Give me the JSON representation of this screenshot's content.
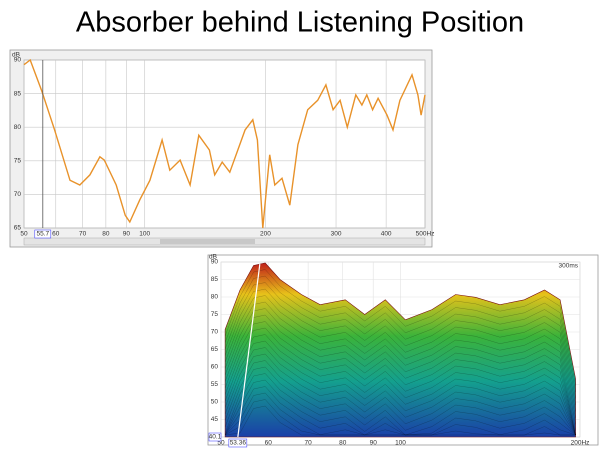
{
  "title": "Absorber behind Listening Position",
  "chart_data": [
    {
      "type": "line",
      "y_label": "dB",
      "cursor_label": "55.7",
      "cursor_x": 55.7,
      "log_x": true,
      "grid": true,
      "color": "#e8922a",
      "xlim": [
        50,
        500
      ],
      "xticks": [
        50,
        60,
        70,
        80,
        90,
        100,
        200,
        300,
        400,
        {
          "value": 500,
          "label": "500Hz"
        }
      ],
      "ylim": [
        65,
        90
      ],
      "yticks": [
        65,
        70,
        75,
        80,
        85,
        90
      ],
      "x": [
        50,
        51.8,
        55.3,
        59.6,
        65.1,
        68.9,
        73.0,
        77.3,
        79.3,
        84.9,
        89.4,
        91.8,
        97.2,
        103,
        110.5,
        115.5,
        122.5,
        129.8,
        136.4,
        145,
        149.5,
        156,
        163,
        178,
        186,
        191,
        197,
        205,
        211,
        220,
        230,
        241,
        255,
        270,
        283,
        295,
        307,
        320,
        336,
        348,
        358,
        370,
        382,
        402,
        416,
        433,
        464,
        480,
        489,
        500
      ],
      "values": [
        89.3,
        90,
        85.5,
        79.6,
        72.1,
        71.4,
        72.9,
        75.6,
        75.1,
        71.4,
        66.9,
        65.9,
        69.2,
        72.1,
        78.1,
        73.6,
        75.1,
        71.4,
        78.8,
        76.6,
        72.9,
        74.8,
        73.3,
        79.6,
        81.1,
        78.1,
        65,
        75.9,
        71.4,
        72.4,
        68.4,
        77.4,
        82.6,
        84,
        86.3,
        82.6,
        84,
        80,
        84.8,
        83.3,
        84.8,
        82.6,
        84.3,
        81.8,
        79.6,
        84,
        87.8,
        84.8,
        81.8,
        84.8
      ]
    },
    {
      "type": "waterfall",
      "y_label": "dB",
      "time_label": "300ms",
      "cursor_label": "53.36",
      "cursor_x": 53.36,
      "floor_label": "40.1",
      "log_x": true,
      "xlim": [
        50,
        200
      ],
      "xticks": [
        50,
        60,
        70,
        80,
        90,
        100,
        {
          "value": 200,
          "label": "200Hz"
        }
      ],
      "ylim": [
        40,
        90
      ],
      "yticks": [
        45,
        50,
        55,
        60,
        65,
        70,
        75,
        80,
        85,
        90
      ],
      "x": [
        50.8,
        53.8,
        56.7,
        59.3,
        62.8,
        68.2,
        73.3,
        80.8,
        87.1,
        94.3,
        101.9,
        112.9,
        123.7,
        133.6,
        146.8,
        161.3,
        174.4,
        185.2,
        196.6
      ],
      "values": [
        70.7,
        82,
        89,
        89.7,
        85,
        80.7,
        77.8,
        79.2,
        75,
        79.2,
        73.5,
        76.4,
        80.7,
        79.9,
        77.8,
        79.2,
        82,
        79.2,
        56.6
      ]
    }
  ]
}
